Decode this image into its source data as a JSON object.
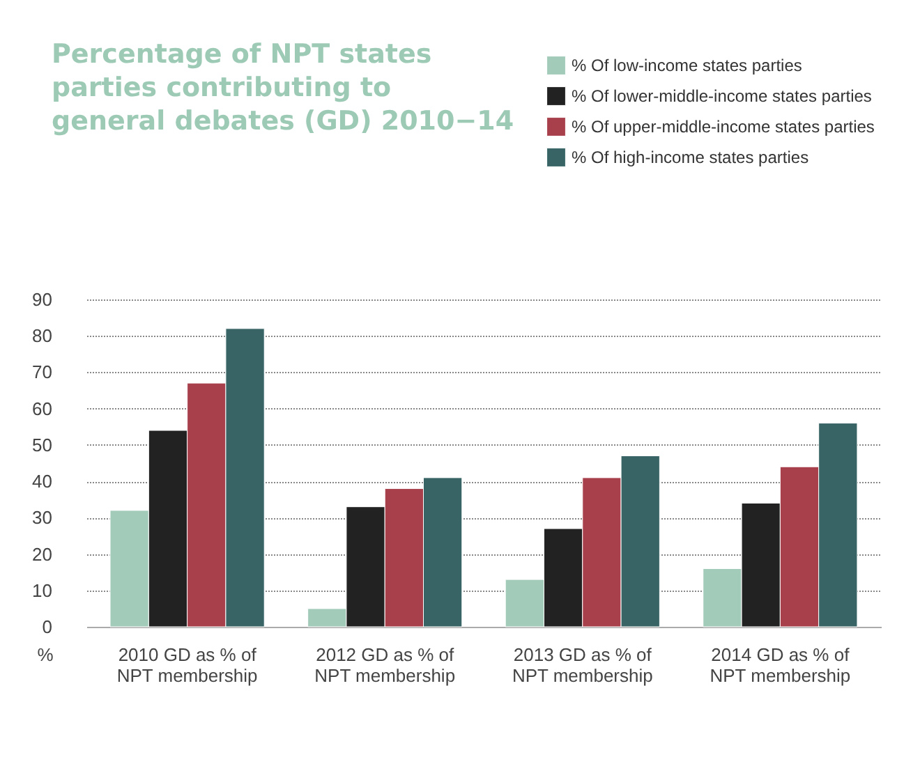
{
  "chart_data": {
    "type": "bar",
    "title": "Percentage of NPT states parties contributing to general debates (GD) 2010−14",
    "ylabel": "%",
    "categories": [
      "2010 GD as % of NPT membership",
      "2012 GD as % of NPT membership",
      "2013 GD as % of NPT membership",
      "2014 GD as % of NPT membership"
    ],
    "series": [
      {
        "name": "% Of low-income states parties",
        "color": "#a3cbb9",
        "values": [
          32,
          5,
          13,
          16
        ]
      },
      {
        "name": "% Of lower-middle-income states parties",
        "color": "#222222",
        "values": [
          54,
          33,
          27,
          34
        ]
      },
      {
        "name": "% Of upper-middle-income states parties",
        "color": "#a8404c",
        "values": [
          67,
          38,
          41,
          44
        ]
      },
      {
        "name": "% Of high-income states parties",
        "color": "#386466",
        "values": [
          82,
          41,
          47,
          56
        ]
      }
    ],
    "ylim": [
      0,
      90
    ],
    "yticks": [
      0,
      10,
      20,
      30,
      40,
      50,
      60,
      70,
      80,
      90
    ],
    "grid": "y",
    "legend": "top right"
  }
}
